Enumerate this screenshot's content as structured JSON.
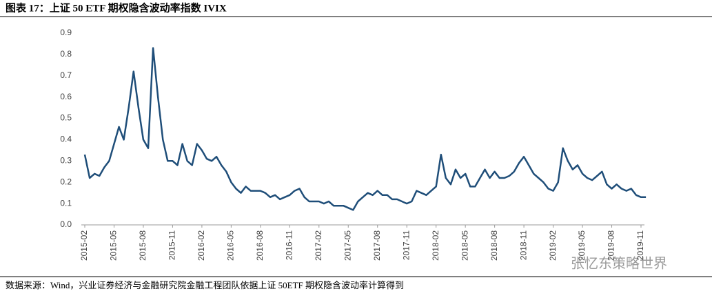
{
  "chart_data": {
    "type": "line",
    "title": "图表 17：上证 50 ETF 期权隐含波动率指数 IVIX",
    "source": "数据来源：Wind，兴业证券经济与金融研究院金融工程团队依据上证 50ETF 期权隐含波动率计算得到",
    "watermark": "张忆东策略世界",
    "categories": [
      "2015-02",
      null,
      null,
      null,
      null,
      null,
      "2015-05",
      null,
      null,
      null,
      null,
      null,
      "2015-08",
      null,
      null,
      null,
      null,
      null,
      "2015-11",
      null,
      null,
      null,
      null,
      null,
      "2016-02",
      null,
      null,
      null,
      null,
      null,
      "2016-05",
      null,
      null,
      null,
      null,
      null,
      "2016-08",
      null,
      null,
      null,
      null,
      null,
      "2016-11",
      null,
      null,
      null,
      null,
      null,
      "2017-02",
      null,
      null,
      null,
      null,
      null,
      "2017-05",
      null,
      null,
      null,
      null,
      null,
      "2017-08",
      null,
      null,
      null,
      null,
      null,
      "2017-11",
      null,
      null,
      null,
      null,
      null,
      "2018-02",
      null,
      null,
      null,
      null,
      null,
      "2018-05",
      null,
      null,
      null,
      null,
      null,
      "2018-08",
      null,
      null,
      null,
      null,
      null,
      "2018-11",
      null,
      null,
      null,
      null,
      null,
      "2019-02",
      null,
      null,
      null,
      null,
      null,
      "2019-05",
      null,
      null,
      null,
      null,
      null,
      "2019-08",
      null,
      null,
      null,
      null,
      null,
      "2019-11",
      null
    ],
    "series": [
      {
        "name": "IVIX",
        "color": "#1f4e79",
        "values": [
          0.33,
          0.22,
          0.24,
          0.23,
          0.27,
          0.3,
          0.38,
          0.46,
          0.4,
          0.55,
          0.72,
          0.55,
          0.4,
          0.36,
          0.83,
          0.6,
          0.4,
          0.3,
          0.3,
          0.28,
          0.38,
          0.3,
          0.28,
          0.38,
          0.35,
          0.31,
          0.3,
          0.32,
          0.28,
          0.25,
          0.2,
          0.17,
          0.15,
          0.18,
          0.16,
          0.16,
          0.16,
          0.15,
          0.13,
          0.14,
          0.12,
          0.13,
          0.14,
          0.16,
          0.17,
          0.13,
          0.11,
          0.11,
          0.11,
          0.1,
          0.11,
          0.09,
          0.09,
          0.09,
          0.08,
          0.07,
          0.11,
          0.13,
          0.15,
          0.14,
          0.16,
          0.14,
          0.14,
          0.12,
          0.12,
          0.11,
          0.1,
          0.11,
          0.16,
          0.15,
          0.14,
          0.16,
          0.18,
          0.33,
          0.22,
          0.19,
          0.26,
          0.22,
          0.24,
          0.18,
          0.18,
          0.22,
          0.26,
          0.22,
          0.25,
          0.22,
          0.22,
          0.23,
          0.25,
          0.29,
          0.32,
          0.28,
          0.24,
          0.22,
          0.2,
          0.17,
          0.16,
          0.2,
          0.36,
          0.3,
          0.26,
          0.28,
          0.24,
          0.22,
          0.21,
          0.23,
          0.25,
          0.19,
          0.17,
          0.19,
          0.17,
          0.16,
          0.17,
          0.14,
          0.13,
          0.13
        ]
      }
    ],
    "ylim": [
      0,
      0.9
    ],
    "yticks": [
      {
        "value": 0,
        "label": "0.0"
      },
      0.1,
      0.2,
      0.3,
      0.4,
      0.5,
      0.6,
      0.7,
      0.8,
      0.9
    ]
  }
}
